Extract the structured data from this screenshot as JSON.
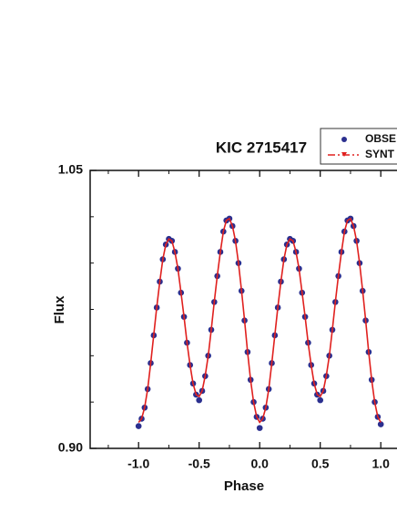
{
  "chart_data": {
    "type": "line",
    "title": "KIC 2715417",
    "x_label": "Phase",
    "y_label": "Flux",
    "x": [
      -1,
      -0.975,
      -0.95,
      -0.925,
      -0.9,
      -0.875,
      -0.85,
      -0.825,
      -0.8,
      -0.775,
      -0.75,
      -0.725,
      -0.7,
      -0.675,
      -0.65,
      -0.625,
      -0.6,
      -0.575,
      -0.55,
      -0.525,
      -0.5,
      -0.475,
      -0.45,
      -0.425,
      -0.4,
      -0.375,
      -0.35,
      -0.325,
      -0.3,
      -0.275,
      -0.25,
      -0.225,
      -0.2,
      -0.175,
      -0.15,
      -0.125,
      -0.1,
      -0.075,
      -0.05,
      -0.025,
      0,
      0.025,
      0.05,
      0.075,
      0.1,
      0.125,
      0.15,
      0.175,
      0.2,
      0.225,
      0.25,
      0.275,
      0.3,
      0.325,
      0.35,
      0.375,
      0.4,
      0.425,
      0.45,
      0.475,
      0.5,
      0.525,
      0.55,
      0.575,
      0.6,
      0.625,
      0.65,
      0.675,
      0.7,
      0.725,
      0.75,
      0.775,
      0.8,
      0.825,
      0.85,
      0.875,
      0.9,
      0.925,
      0.95,
      0.975,
      1
    ],
    "series": [
      {
        "name": "OBSE",
        "style": "markers",
        "color": "#2b2f8f",
        "values": [
          0.912,
          0.916,
          0.922,
          0.932,
          0.946,
          0.961,
          0.976,
          0.99,
          1.002,
          1.01,
          1.013,
          1.012,
          1.006,
          0.997,
          0.984,
          0.971,
          0.957,
          0.945,
          0.935,
          0.929,
          0.926,
          0.931,
          0.939,
          0.95,
          0.964,
          0.979,
          0.993,
          1.006,
          1.017,
          1.023,
          1.024,
          1.02,
          1.012,
          1.0,
          0.985,
          0.969,
          0.952,
          0.937,
          0.925,
          0.917,
          0.911,
          0.916,
          0.922,
          0.932,
          0.946,
          0.961,
          0.976,
          0.99,
          1.002,
          1.01,
          1.013,
          1.012,
          1.006,
          0.997,
          0.984,
          0.971,
          0.957,
          0.945,
          0.935,
          0.929,
          0.926,
          0.931,
          0.939,
          0.95,
          0.964,
          0.979,
          0.993,
          1.006,
          1.017,
          1.023,
          1.024,
          1.02,
          1.012,
          1.0,
          0.985,
          0.969,
          0.952,
          0.937,
          0.925,
          0.917,
          0.913
        ]
      },
      {
        "name": "SYNT",
        "style": "line",
        "color": "#e0201e",
        "values": [
          0.914,
          0.916,
          0.922,
          0.932,
          0.946,
          0.961,
          0.976,
          0.99,
          1.002,
          1.01,
          1.013,
          1.012,
          1.006,
          0.997,
          0.984,
          0.971,
          0.957,
          0.945,
          0.935,
          0.929,
          0.928,
          0.931,
          0.939,
          0.95,
          0.964,
          0.979,
          0.993,
          1.006,
          1.017,
          1.023,
          1.024,
          1.02,
          1.012,
          1.0,
          0.985,
          0.969,
          0.952,
          0.937,
          0.925,
          0.917,
          0.914,
          0.916,
          0.922,
          0.932,
          0.946,
          0.961,
          0.976,
          0.99,
          1.002,
          1.01,
          1.013,
          1.012,
          1.006,
          0.997,
          0.984,
          0.971,
          0.957,
          0.945,
          0.935,
          0.929,
          0.928,
          0.931,
          0.939,
          0.95,
          0.964,
          0.979,
          0.993,
          1.006,
          1.017,
          1.023,
          1.024,
          1.02,
          1.012,
          1.0,
          0.985,
          0.969,
          0.952,
          0.937,
          0.925,
          0.917,
          0.914
        ]
      }
    ],
    "xlim": [
      -1.4,
      1.4
    ],
    "xticks": [
      {
        "value": -1,
        "label": "-1.0"
      },
      {
        "value": -0.5,
        "label": "-0.5"
      },
      {
        "value": 0,
        "label": "0.0"
      },
      {
        "value": 0.5,
        "label": "0.5"
      },
      {
        "value": 1,
        "label": "1.0"
      }
    ],
    "ylim": [
      0.9,
      1.05
    ],
    "yticks": [
      {
        "value": 0.9,
        "label": "0.90"
      },
      1.05
    ]
  }
}
